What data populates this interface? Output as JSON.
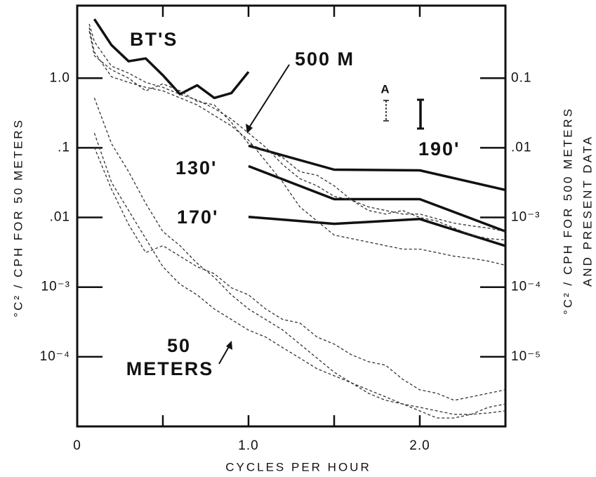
{
  "chart_data": {
    "type": "line",
    "xlabel": "CYCLES PER HOUR",
    "ylabel": "°C² / CPH FOR 50 METERS",
    "y2label": [
      "°C² / CPH FOR 500 METERS",
      "AND PRESENT DATA"
    ],
    "log_y": true,
    "xlim": [
      0,
      2.5
    ],
    "xticks": [
      0,
      {
        "value": 1,
        "label": "1.0"
      },
      {
        "value": 2,
        "label": "2.0"
      }
    ],
    "xminorticks": [
      0.5,
      1.5
    ],
    "ylim": [
      1e-05,
      11
    ],
    "yticks": [
      {
        "value": 1,
        "label": "1.0"
      },
      {
        "value": 0.1,
        "label": ".1"
      },
      {
        "value": 0.01,
        "label": ".01"
      },
      {
        "value": 0.001,
        "label": "10⁻³"
      },
      {
        "value": 0.0001,
        "label": "10⁻⁴"
      }
    ],
    "y2lim": [
      1e-06,
      1.1
    ],
    "y2ticks": [
      0.1,
      {
        "value": 0.01,
        "label": ".01"
      },
      {
        "value": 0.001,
        "label": "10⁻³"
      },
      {
        "value": 0.0001,
        "label": "10⁻⁴"
      },
      {
        "value": 1e-05,
        "label": "10⁻⁵"
      }
    ],
    "annotations": [
      "500 M",
      [
        "50",
        "METERS"
      ],
      "A"
    ],
    "series": [
      {
        "name": "BT'S",
        "style": "solid",
        "color": "#111",
        "x": [
          0.1,
          0.2,
          0.3,
          0.4,
          0.5,
          0.6,
          0.7,
          0.8,
          0.9,
          1.0
        ],
        "values": [
          7.05,
          2.98,
          1.75,
          1.92,
          1.1,
          0.59,
          0.79,
          0.52,
          0.61,
          1.23
        ]
      },
      {
        "name": "190'",
        "style": "solid",
        "color": "#111",
        "axis": "y2",
        "x": [
          1.0,
          1.5,
          2.0,
          2.5
        ],
        "values": [
          0.0107,
          0.00486,
          0.00474,
          0.00248
        ]
      },
      {
        "name": "130'",
        "style": "solid",
        "color": "#111",
        "axis": "y2",
        "x": [
          1.0,
          1.5,
          2.0,
          2.5
        ],
        "values": [
          0.00546,
          0.00183,
          0.00183,
          0.00063
        ]
      },
      {
        "name": "170'",
        "style": "solid",
        "color": "#111",
        "axis": "y2",
        "x": [
          1.0,
          1.5,
          2.0,
          2.5
        ],
        "values": [
          0.00102,
          0.00081,
          0.00095,
          0.00039
        ]
      },
      {
        "style": "dashed",
        "color": "#333",
        "axis": "y2",
        "x": [
          0.07,
          0.1,
          0.2,
          0.3,
          0.4,
          0.5,
          0.6,
          0.7,
          0.8,
          0.9,
          1.0,
          1.1,
          1.2,
          1.3,
          1.4,
          1.5,
          1.6,
          1.7,
          1.8,
          1.9,
          2.0,
          2.1,
          2.2,
          2.3,
          2.4,
          2.5
        ],
        "values": [
          0.6,
          0.335,
          0.149,
          0.118,
          0.0869,
          0.0739,
          0.0586,
          0.0486,
          0.0368,
          0.0259,
          0.0163,
          0.0102,
          0.00573,
          0.0036,
          0.00285,
          0.00201,
          0.00179,
          0.00142,
          0.00126,
          0.00112,
          0.00112,
          0.000955,
          0.00083,
          0.000757,
          0.000705,
          0.000628
        ]
      },
      {
        "style": "dashed",
        "color": "#333",
        "axis": "y2",
        "x": [
          0.07,
          0.1,
          0.2,
          0.3,
          0.4,
          0.5,
          0.6,
          0.7,
          0.8,
          0.9,
          1.0,
          1.1,
          1.2,
          1.3,
          1.4,
          1.5,
          1.6,
          1.7,
          1.8,
          1.9,
          2.0,
          2.1,
          2.2,
          2.3,
          2.4,
          2.5
        ],
        "values": [
          0.533,
          0.237,
          0.105,
          0.0869,
          0.0739,
          0.0658,
          0.0521,
          0.0413,
          0.0292,
          0.0206,
          0.0129,
          0.00643,
          0.0032,
          0.00142,
          0.00089,
          0.000559,
          0.000498,
          0.000443,
          0.000394,
          0.000351,
          0.000351,
          0.000313,
          0.000278,
          0.000259,
          0.000236,
          0.000206
        ]
      },
      {
        "style": "dashed",
        "color": "#333",
        "axis": "y2",
        "x": [
          0.07,
          0.1,
          0.2,
          0.3,
          0.4,
          0.5,
          0.6,
          0.7,
          0.8,
          0.9,
          1.0,
          1.1,
          1.2,
          1.3,
          1.4,
          1.5,
          1.6,
          1.7,
          1.8,
          1.9,
          2.0,
          2.1,
          2.2,
          2.3,
          2.4,
          2.5
        ],
        "values": [
          0.475,
          0.21,
          0.132,
          0.1,
          0.0658,
          0.083,
          0.0658,
          0.0464,
          0.0413,
          0.0231,
          0.0115,
          0.00912,
          0.00722,
          0.00454,
          0.00404,
          0.00285,
          0.00179,
          0.00126,
          0.00112,
          0.00126,
          0.001,
          0.00089,
          0.000705,
          0.000559,
          0.000498,
          0.000475
        ]
      },
      {
        "style": "dashed",
        "color": "#333",
        "x": [
          0.1,
          0.2,
          0.3,
          0.4,
          0.5,
          0.6,
          0.7,
          0.8,
          0.9,
          1.0,
          1.1,
          1.2,
          1.3,
          1.4,
          1.5,
          1.6,
          1.7,
          1.8,
          1.9,
          2.0,
          2.1,
          2.2,
          2.3,
          2.4,
          2.5
        ],
        "values": [
          0.521,
          0.115,
          0.0454,
          0.0159,
          0.00628,
          0.00394,
          0.0022,
          0.00138,
          0.000774,
          0.000486,
          0.000343,
          0.000242,
          0.000152,
          9.55e-05,
          6e-05,
          4.23e-05,
          3.35e-05,
          2.66e-05,
          2.1e-05,
          1.88e-05,
          1.67e-05,
          1.49e-05,
          1.49e-05,
          1.56e-05,
          1.67e-05
        ]
      },
      {
        "style": "dashed",
        "color": "#333",
        "x": [
          0.1,
          0.2,
          0.3,
          0.4,
          0.5,
          0.6,
          0.7,
          0.8,
          0.9,
          1.0,
          1.1,
          1.2,
          1.3,
          1.4,
          1.5,
          1.6,
          1.7,
          1.8,
          1.9,
          2.0,
          2.1,
          2.2,
          2.3,
          2.4,
          2.5
        ],
        "values": [
          0.163,
          0.032,
          0.0126,
          0.00498,
          0.00196,
          0.0011,
          0.000774,
          0.000486,
          0.000343,
          0.000242,
          0.000192,
          0.000135,
          9.55e-05,
          6.73e-05,
          5.33e-05,
          4.23e-05,
          2.99e-05,
          2.37e-05,
          2.1e-05,
          1.67e-05,
          1.32e-05,
          1.32e-05,
          1.49e-05,
          1.88e-05,
          2.1e-05
        ]
      },
      {
        "style": "dashed",
        "color": "#333",
        "x": [
          0.1,
          0.2,
          0.3,
          0.4,
          0.5,
          0.6,
          0.7,
          0.8,
          0.9,
          1.0,
          1.1,
          1.2,
          1.3,
          1.4,
          1.5,
          1.6,
          1.7,
          1.8,
          1.9,
          2.0,
          2.1,
          2.2,
          2.3,
          2.4,
          2.5
        ],
        "values": [
          0.102,
          0.0254,
          0.00793,
          0.00313,
          0.00394,
          0.00278,
          0.00196,
          0.00156,
          0.000977,
          0.000774,
          0.000486,
          0.000343,
          0.000305,
          0.000192,
          0.000152,
          0.000107,
          8.5e-05,
          7.57e-05,
          4.75e-05,
          3.35e-05,
          2.99e-05,
          2.37e-05,
          2.66e-05,
          2.99e-05,
          3.35e-05
        ]
      }
    ]
  }
}
